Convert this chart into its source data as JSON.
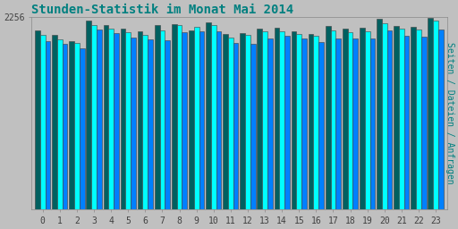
{
  "title": "Stunden-Statistik im Monat Mai 2014",
  "ylabel_right": "Seiten / Dateien / Anfragen",
  "hours": [
    0,
    1,
    2,
    3,
    4,
    5,
    6,
    7,
    8,
    9,
    10,
    11,
    12,
    13,
    14,
    15,
    16,
    17,
    18,
    19,
    20,
    21,
    22,
    23
  ],
  "ylim": [
    0,
    2256
  ],
  "yticks": [
    2256
  ],
  "background_color": "#c0c0c0",
  "plot_bg_color": "#c0c0c0",
  "title_color": "#008080",
  "bar_color_green": "#006060",
  "bar_color_cyan": "#00ffff",
  "bar_color_blue": "#0080ff",
  "bar_edgecolor": "#404040",
  "values_green": [
    2100,
    2050,
    1980,
    2220,
    2160,
    2120,
    2090,
    2160,
    2180,
    2100,
    2200,
    2060,
    2070,
    2120,
    2130,
    2090,
    2060,
    2150,
    2120,
    2130,
    2240,
    2150,
    2140,
    2245
  ],
  "values_cyan": [
    2050,
    2000,
    1950,
    2170,
    2120,
    2080,
    2050,
    2100,
    2160,
    2140,
    2160,
    2020,
    2050,
    2090,
    2090,
    2060,
    2040,
    2100,
    2080,
    2090,
    2190,
    2120,
    2110,
    2220
  ],
  "values_blue": [
    1980,
    1940,
    1890,
    2110,
    2070,
    2020,
    2000,
    1990,
    2080,
    2090,
    2090,
    1950,
    1940,
    2010,
    2040,
    2010,
    1970,
    2010,
    2010,
    2010,
    2100,
    2040,
    2030,
    2110
  ],
  "bar_width": 0.3,
  "ylabel_right_color": "#008080",
  "ylabel_right_fontsize": 7,
  "title_fontsize": 10,
  "tick_fontsize": 7,
  "tick_color": "#404040"
}
